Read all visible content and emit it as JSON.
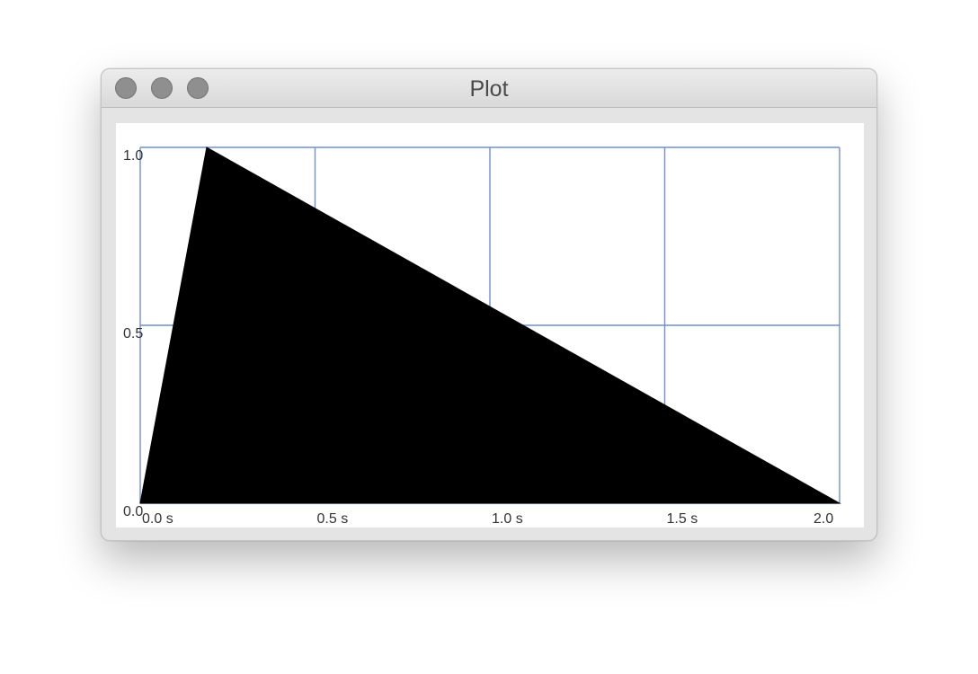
{
  "window": {
    "title": "Plot"
  },
  "colors": {
    "grid": "#6f8fcf",
    "fill": "#000000",
    "label": "#333333"
  },
  "chart_data": {
    "type": "area",
    "title": "",
    "xlabel": "",
    "ylabel": "",
    "x": [
      0.0,
      0.19,
      2.0
    ],
    "y": [
      0.0,
      1.0,
      0.0
    ],
    "series": [
      {
        "x": [
          0.0,
          0.19,
          2.0
        ],
        "y": [
          0.0,
          1.0,
          0.0
        ]
      }
    ],
    "xlim": [
      0,
      2.0
    ],
    "ylim": [
      0,
      1.0
    ],
    "x_ticks": [
      0,
      0.5,
      1.0,
      1.5,
      2.0
    ],
    "x_tick_labels": [
      "0.0 s",
      "0.5 s",
      "1.0 s",
      "1.5 s",
      "2.0"
    ],
    "y_ticks": [
      0,
      0.5,
      1.0
    ],
    "y_tick_labels": [
      "0.0",
      "0.5",
      "1.0"
    ],
    "grid": true,
    "legend": "none"
  }
}
